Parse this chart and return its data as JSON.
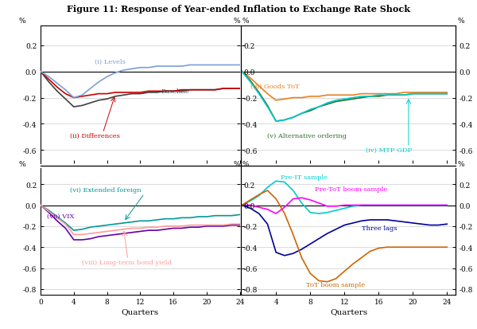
{
  "title": "Figure 11: Response of Year-ended Inflation to Exchange Rate Shock",
  "top_left": {
    "xlim": [
      0,
      24
    ],
    "ylim": [
      -0.7,
      0.35
    ],
    "xticks": [
      0,
      4,
      8,
      12,
      16,
      20,
      24
    ],
    "yticks": [
      -0.6,
      -0.4,
      -0.2,
      0.0,
      0.2
    ],
    "series": {
      "levels": {
        "color": "#7b9fd4",
        "x": [
          0,
          1,
          2,
          3,
          4,
          5,
          6,
          7,
          8,
          9,
          10,
          11,
          12,
          13,
          14,
          15,
          16,
          17,
          18,
          19,
          20,
          21,
          22,
          23,
          24
        ],
        "y": [
          0.0,
          -0.04,
          -0.09,
          -0.14,
          -0.2,
          -0.18,
          -0.13,
          -0.08,
          -0.04,
          -0.01,
          0.01,
          0.02,
          0.03,
          0.03,
          0.04,
          0.04,
          0.04,
          0.04,
          0.05,
          0.05,
          0.05,
          0.05,
          0.05,
          0.05,
          0.05
        ]
      },
      "differences": {
        "color": "#cc0000",
        "x": [
          0,
          1,
          2,
          3,
          4,
          5,
          6,
          7,
          8,
          9,
          10,
          11,
          12,
          13,
          14,
          15,
          16,
          17,
          18,
          19,
          20,
          21,
          22,
          23,
          24
        ],
        "y": [
          0.0,
          -0.06,
          -0.12,
          -0.17,
          -0.2,
          -0.19,
          -0.18,
          -0.17,
          -0.17,
          -0.16,
          -0.16,
          -0.16,
          -0.16,
          -0.15,
          -0.15,
          -0.15,
          -0.15,
          -0.14,
          -0.14,
          -0.14,
          -0.14,
          -0.14,
          -0.13,
          -0.13,
          -0.13
        ]
      },
      "baseline": {
        "color": "#404040",
        "x": [
          0,
          1,
          2,
          3,
          4,
          5,
          6,
          7,
          8,
          9,
          10,
          11,
          12,
          13,
          14,
          15,
          16,
          17,
          18,
          19,
          20,
          21,
          22,
          23,
          24
        ],
        "y": [
          0.0,
          -0.08,
          -0.15,
          -0.21,
          -0.27,
          -0.26,
          -0.24,
          -0.22,
          -0.21,
          -0.19,
          -0.18,
          -0.17,
          -0.17,
          -0.16,
          -0.16,
          -0.15,
          -0.15,
          -0.15,
          -0.14,
          -0.14,
          -0.14,
          -0.14,
          -0.13,
          -0.13,
          -0.13
        ]
      }
    }
  },
  "top_right": {
    "xlim": [
      0,
      25
    ],
    "ylim": [
      -0.7,
      0.35
    ],
    "xticks": [
      4,
      8,
      12,
      16,
      20,
      24
    ],
    "yticks": [
      -0.6,
      -0.4,
      -0.2,
      0.0,
      0.2
    ],
    "series": {
      "goods_tot": {
        "color": "#e88020",
        "x": [
          0,
          1,
          2,
          3,
          4,
          5,
          6,
          7,
          8,
          9,
          10,
          11,
          12,
          13,
          14,
          15,
          16,
          17,
          18,
          19,
          20,
          21,
          22,
          23,
          24
        ],
        "y": [
          0.0,
          -0.05,
          -0.11,
          -0.17,
          -0.22,
          -0.21,
          -0.2,
          -0.2,
          -0.19,
          -0.19,
          -0.18,
          -0.18,
          -0.18,
          -0.18,
          -0.17,
          -0.17,
          -0.17,
          -0.17,
          -0.17,
          -0.16,
          -0.16,
          -0.16,
          -0.16,
          -0.16,
          -0.16
        ]
      },
      "alternative": {
        "color": "#2d6e2d",
        "x": [
          0,
          1,
          2,
          3,
          4,
          5,
          6,
          7,
          8,
          9,
          10,
          11,
          12,
          13,
          14,
          15,
          16,
          17,
          18,
          19,
          20,
          21,
          22,
          23,
          24
        ],
        "y": [
          0.0,
          -0.07,
          -0.16,
          -0.26,
          -0.38,
          -0.37,
          -0.35,
          -0.32,
          -0.3,
          -0.27,
          -0.25,
          -0.23,
          -0.22,
          -0.21,
          -0.2,
          -0.19,
          -0.19,
          -0.18,
          -0.18,
          -0.18,
          -0.17,
          -0.17,
          -0.17,
          -0.17,
          -0.17
        ]
      },
      "mtp_gdp": {
        "color": "#00cccc",
        "x": [
          0,
          1,
          2,
          3,
          4,
          5,
          6,
          7,
          8,
          9,
          10,
          11,
          12,
          13,
          14,
          15,
          16,
          17,
          18,
          19,
          20,
          21,
          22,
          23,
          24
        ],
        "y": [
          0.0,
          -0.08,
          -0.17,
          -0.27,
          -0.38,
          -0.37,
          -0.35,
          -0.32,
          -0.29,
          -0.27,
          -0.24,
          -0.22,
          -0.21,
          -0.2,
          -0.19,
          -0.19,
          -0.18,
          -0.18,
          -0.18,
          -0.18,
          -0.17,
          -0.17,
          -0.17,
          -0.17,
          -0.17
        ]
      }
    }
  },
  "bottom_left": {
    "xlim": [
      0,
      24
    ],
    "ylim": [
      -0.85,
      0.35
    ],
    "xticks": [
      0,
      4,
      8,
      12,
      16,
      20,
      24
    ],
    "yticks": [
      -0.8,
      -0.6,
      -0.4,
      -0.2,
      0.0,
      0.2
    ],
    "series": {
      "extended": {
        "color": "#009999",
        "x": [
          0,
          1,
          2,
          3,
          4,
          5,
          6,
          7,
          8,
          9,
          10,
          11,
          12,
          13,
          14,
          15,
          16,
          17,
          18,
          19,
          20,
          21,
          22,
          23,
          24
        ],
        "y": [
          0.0,
          -0.05,
          -0.11,
          -0.17,
          -0.24,
          -0.23,
          -0.21,
          -0.2,
          -0.19,
          -0.18,
          -0.17,
          -0.16,
          -0.15,
          -0.15,
          -0.14,
          -0.13,
          -0.13,
          -0.12,
          -0.12,
          -0.11,
          -0.11,
          -0.1,
          -0.1,
          -0.1,
          -0.09
        ]
      },
      "vix": {
        "color": "#6600aa",
        "x": [
          0,
          1,
          2,
          3,
          4,
          5,
          6,
          7,
          8,
          9,
          10,
          11,
          12,
          13,
          14,
          15,
          16,
          17,
          18,
          19,
          20,
          21,
          22,
          23,
          24
        ],
        "y": [
          0.0,
          -0.07,
          -0.15,
          -0.22,
          -0.33,
          -0.33,
          -0.32,
          -0.3,
          -0.29,
          -0.28,
          -0.27,
          -0.26,
          -0.25,
          -0.24,
          -0.24,
          -0.23,
          -0.22,
          -0.22,
          -0.21,
          -0.21,
          -0.2,
          -0.2,
          -0.2,
          -0.19,
          -0.19
        ]
      },
      "bond_yield": {
        "color": "#ff9999",
        "x": [
          0,
          1,
          2,
          3,
          4,
          5,
          6,
          7,
          8,
          9,
          10,
          11,
          12,
          13,
          14,
          15,
          16,
          17,
          18,
          19,
          20,
          21,
          22,
          23,
          24
        ],
        "y": [
          0.0,
          -0.06,
          -0.12,
          -0.18,
          -0.28,
          -0.28,
          -0.27,
          -0.26,
          -0.25,
          -0.24,
          -0.23,
          -0.22,
          -0.22,
          -0.21,
          -0.21,
          -0.2,
          -0.2,
          -0.2,
          -0.19,
          -0.19,
          -0.19,
          -0.19,
          -0.19,
          -0.18,
          -0.18
        ]
      }
    }
  },
  "bottom_right": {
    "xlim": [
      0,
      25
    ],
    "ylim": [
      -0.85,
      0.35
    ],
    "xticks": [
      4,
      8,
      12,
      16,
      20,
      24
    ],
    "yticks": [
      -0.8,
      -0.6,
      -0.4,
      -0.2,
      0.0,
      0.2
    ],
    "series": {
      "pre_it": {
        "color": "#00cccc",
        "x": [
          0,
          1,
          2,
          3,
          4,
          5,
          6,
          7,
          8,
          9,
          10,
          11,
          12,
          13,
          14,
          15,
          16,
          17,
          18,
          19,
          20,
          21,
          22,
          23,
          24
        ],
        "y": [
          0.0,
          0.04,
          0.09,
          0.17,
          0.23,
          0.22,
          0.14,
          0.02,
          -0.07,
          -0.08,
          -0.07,
          -0.05,
          -0.03,
          -0.01,
          0.0,
          0.0,
          0.0,
          0.0,
          0.0,
          0.0,
          0.0,
          0.0,
          0.0,
          0.0,
          0.0
        ]
      },
      "pre_tot": {
        "color": "#ff00ff",
        "x": [
          0,
          1,
          2,
          3,
          4,
          5,
          6,
          7,
          8,
          9,
          10,
          11,
          12,
          13,
          14,
          15,
          16,
          17,
          18,
          19,
          20,
          21,
          22,
          23,
          24
        ],
        "y": [
          0.0,
          0.0,
          -0.02,
          -0.04,
          -0.08,
          -0.02,
          0.06,
          0.07,
          0.05,
          0.02,
          -0.01,
          -0.01,
          0.0,
          0.0,
          0.0,
          0.0,
          0.0,
          0.0,
          0.0,
          0.0,
          0.0,
          0.0,
          0.0,
          0.0,
          0.0
        ]
      },
      "three_lags": {
        "color": "#000099",
        "x": [
          0,
          1,
          2,
          3,
          4,
          5,
          6,
          7,
          8,
          9,
          10,
          11,
          12,
          13,
          14,
          15,
          16,
          17,
          18,
          19,
          20,
          21,
          22,
          23,
          24
        ],
        "y": [
          0.0,
          -0.03,
          -0.08,
          -0.18,
          -0.45,
          -0.48,
          -0.46,
          -0.42,
          -0.37,
          -0.32,
          -0.27,
          -0.23,
          -0.19,
          -0.17,
          -0.15,
          -0.14,
          -0.14,
          -0.14,
          -0.15,
          -0.16,
          -0.17,
          -0.18,
          -0.19,
          -0.19,
          -0.18
        ]
      },
      "tot_boom": {
        "color": "#cc6600",
        "x": [
          0,
          1,
          2,
          3,
          4,
          5,
          6,
          7,
          8,
          9,
          10,
          11,
          12,
          13,
          14,
          15,
          16,
          17,
          18,
          19,
          20,
          21,
          22,
          23,
          24
        ],
        "y": [
          0.0,
          0.05,
          0.1,
          0.14,
          0.06,
          -0.08,
          -0.28,
          -0.5,
          -0.65,
          -0.72,
          -0.73,
          -0.7,
          -0.63,
          -0.56,
          -0.5,
          -0.44,
          -0.41,
          -0.4,
          -0.4,
          -0.4,
          -0.4,
          -0.4,
          -0.4,
          -0.4,
          -0.4
        ]
      }
    }
  },
  "bg_color": "#f5f5f5",
  "grid_color": "#cccccc",
  "lw": 1.2
}
